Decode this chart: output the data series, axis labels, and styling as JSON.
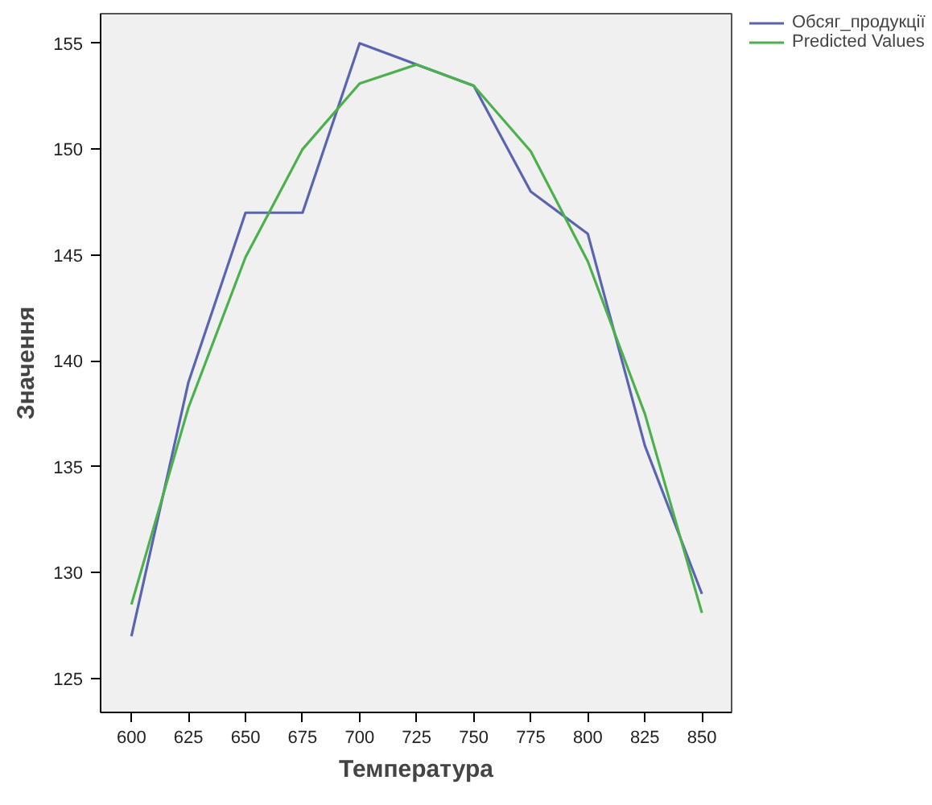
{
  "chart_data": {
    "type": "line",
    "xlabel": "Температура",
    "ylabel": "Значення",
    "x": [
      600,
      625,
      650,
      675,
      700,
      725,
      750,
      775,
      800,
      825,
      850
    ],
    "series": [
      {
        "name": "Обсяг_продукції",
        "color": "#5a64b0",
        "values": [
          127,
          139,
          147,
          147,
          155,
          154,
          153,
          148,
          146,
          136,
          129
        ]
      },
      {
        "name": "Predicted Values",
        "color": "#4cb04c",
        "values": [
          128.5,
          137.8,
          144.9,
          150,
          153.1,
          154,
          153,
          149.9,
          144.7,
          137.5,
          128.1
        ]
      }
    ],
    "xlim": [
      586.5,
      863
    ],
    "ylim": [
      123.4,
      156.4
    ],
    "xticks": [
      600,
      625,
      650,
      675,
      700,
      725,
      750,
      775,
      800,
      825,
      850
    ],
    "yticks": [
      125,
      130,
      135,
      140,
      145,
      150,
      155
    ],
    "grid": false,
    "legend": "top right",
    "marker": "none",
    "line_style": "solid"
  }
}
